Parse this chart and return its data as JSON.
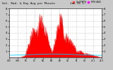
{
  "title": "Sol. Rad. & Day Avg per Minute",
  "date_label": "Jan 25 1:",
  "background_color": "#c8c8c8",
  "plot_bg_color": "#ffffff",
  "grid_color": "#bbbbbb",
  "bar_color": "#ff0000",
  "avg_line_color": "#00ccff",
  "legend_items": [
    {
      "label": "CurYTMTH",
      "color": "#ff4444"
    },
    {
      "label": "MTH AVN",
      "color": "#ff00ff"
    }
  ],
  "ylim": [
    0,
    8
  ],
  "yticks_left": [
    1,
    2,
    3,
    4,
    5,
    6,
    7,
    8
  ],
  "yticks_right": [
    1,
    2,
    3,
    4,
    5,
    6,
    7,
    8
  ],
  "num_points": 300,
  "seed": 10
}
